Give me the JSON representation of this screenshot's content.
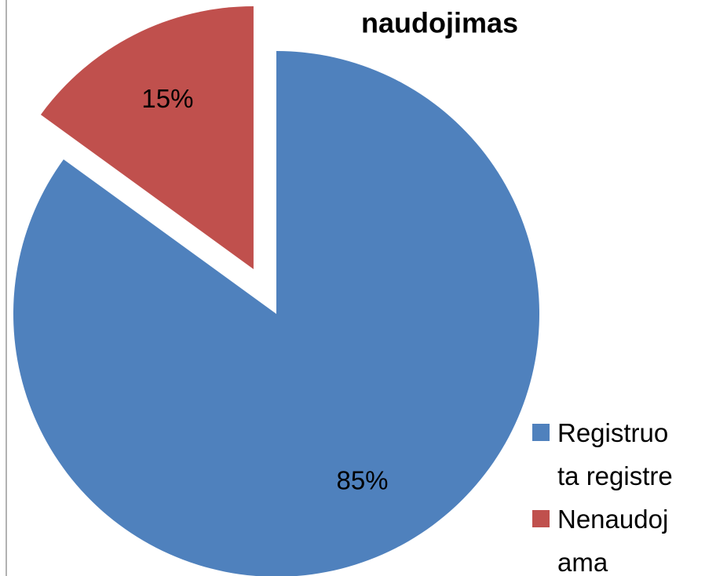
{
  "chart_data": {
    "type": "pie",
    "title": "naudojimas",
    "categories": [
      "Registruota registre",
      "Nenaudojama"
    ],
    "values": [
      85,
      15
    ],
    "value_labels": [
      "85%",
      "15%"
    ],
    "colors": [
      "#4f81bd",
      "#c0504d"
    ],
    "legend": "right"
  }
}
